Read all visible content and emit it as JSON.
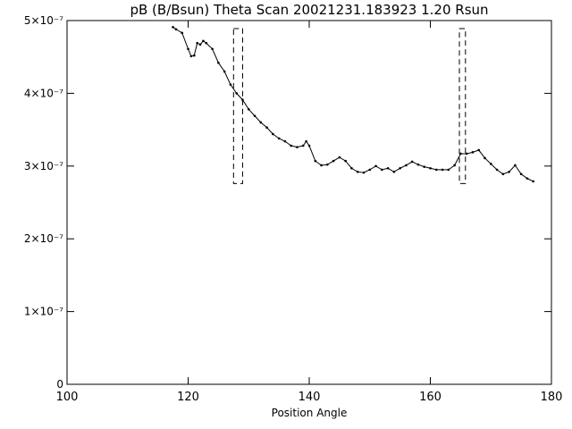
{
  "chart_data": {
    "type": "line",
    "title": "pB (B/Bsun) Theta Scan 20021231.183923 1.20 Rsun",
    "xlabel": "Position Angle",
    "color": "#000000",
    "xlim": [
      100,
      180
    ],
    "xticks": [
      100,
      120,
      140,
      160,
      180
    ],
    "ylim": [
      0,
      5e-07
    ],
    "yticks": [
      {
        "value": 0,
        "label": "0"
      },
      {
        "value": 1e-07,
        "label": "1×10⁻⁷"
      },
      {
        "value": 2e-07,
        "label": "2×10⁻⁷"
      },
      {
        "value": 3e-07,
        "label": "3×10⁻⁷"
      },
      {
        "value": 4e-07,
        "label": "4×10⁻⁷"
      },
      {
        "value": 5e-07,
        "label": "5×10⁻⁷"
      }
    ],
    "x": [
      117.5,
      118,
      119,
      120,
      120.5,
      121,
      121.5,
      122,
      122.5,
      123,
      124,
      125,
      126,
      127,
      128,
      129,
      130,
      131,
      132,
      133,
      134,
      135,
      136,
      137,
      138,
      139,
      139.5,
      140,
      141,
      142,
      143,
      144,
      145,
      146,
      147,
      148,
      149,
      150,
      151,
      152,
      153,
      154,
      155,
      156,
      157,
      158,
      159,
      160,
      161,
      162,
      163,
      164,
      165,
      166,
      167,
      168,
      169,
      170,
      171,
      172,
      173,
      174,
      175,
      176,
      177
    ],
    "values": [
      4.91e-07,
      4.88e-07,
      4.83e-07,
      4.61e-07,
      4.51e-07,
      4.52e-07,
      4.69e-07,
      4.67e-07,
      4.72e-07,
      4.69e-07,
      4.61e-07,
      4.42e-07,
      4.3e-07,
      4.12e-07,
      4e-07,
      3.91e-07,
      3.78e-07,
      3.69e-07,
      3.6e-07,
      3.53e-07,
      3.44e-07,
      3.38e-07,
      3.34e-07,
      3.28e-07,
      3.26e-07,
      3.28e-07,
      3.34e-07,
      3.28e-07,
      3.07e-07,
      3.01e-07,
      3.02e-07,
      3.07e-07,
      3.12e-07,
      3.07e-07,
      2.97e-07,
      2.92e-07,
      2.91e-07,
      2.95e-07,
      3e-07,
      2.95e-07,
      2.97e-07,
      2.92e-07,
      2.97e-07,
      3.01e-07,
      3.06e-07,
      3.02e-07,
      2.99e-07,
      2.97e-07,
      2.95e-07,
      2.95e-07,
      2.95e-07,
      3.01e-07,
      3.17e-07,
      3.17e-07,
      3.19e-07,
      3.22e-07,
      3.11e-07,
      3.03e-07,
      2.95e-07,
      2.89e-07,
      2.92e-07,
      3.01e-07,
      2.89e-07,
      2.83e-07,
      2.79e-07
    ],
    "highlights": [
      {
        "x": [
          127.5,
          129.0
        ],
        "y": [
          2.76e-07,
          4.89e-07
        ]
      },
      {
        "x": [
          164.8,
          165.8
        ],
        "y": [
          2.76e-07,
          4.89e-07
        ]
      }
    ]
  }
}
